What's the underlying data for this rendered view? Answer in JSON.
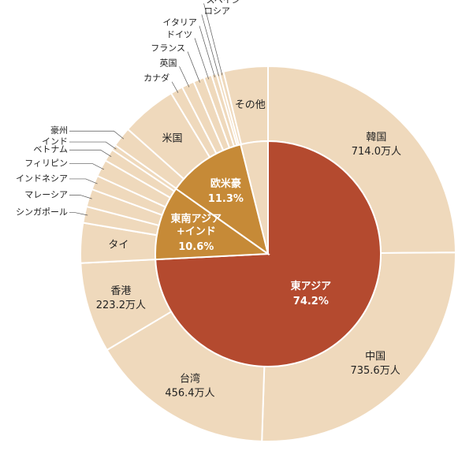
{
  "chart_data": {
    "type": "sunburst",
    "inner": {
      "categories": [
        "東アジア",
        "東南アジア\n+インド",
        "欧米豪",
        null
      ],
      "values": [
        74.2,
        10.6,
        11.3,
        3.9
      ],
      "value_labels": [
        "74.2%",
        "10.6%",
        "11.3%",
        null
      ],
      "colors": [
        "#b44a2f",
        "#c68a37",
        "#c68a37",
        "#efd9bc"
      ]
    },
    "outer": {
      "categories": [
        "韓国",
        "中国",
        "台湾",
        "香港",
        "タイ",
        "シンガポール",
        "マレーシア",
        "インドネシア",
        "フィリピン",
        "ベトナム",
        "インド",
        "豪州",
        "米国",
        "カナダ",
        "英国",
        "フランス",
        "ドイツ",
        "イタリア",
        "ロシア",
        "スペイン",
        "その他"
      ],
      "values": [
        714.0,
        735.6,
        456.4,
        223.2,
        98.7,
        40.4,
        44.0,
        35.2,
        42.4,
        30.9,
        13.4,
        49.5,
        137.5,
        30.6,
        31.0,
        26.9,
        19.6,
        12.5,
        7.7,
        10.0,
        109.6
      ],
      "value_labels": [
        "714.0万人",
        "735.6万人",
        "456.4万人",
        "223.2万人",
        null,
        null,
        null,
        null,
        null,
        null,
        null,
        null,
        null,
        null,
        null,
        null,
        null,
        null,
        null,
        null,
        null
      ],
      "color": "#efd9bc"
    }
  }
}
